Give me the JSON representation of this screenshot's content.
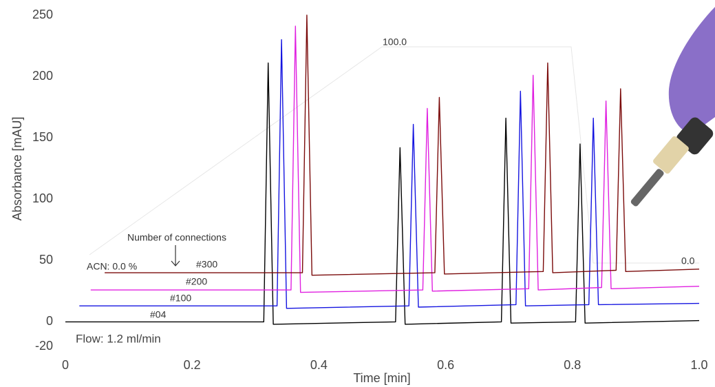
{
  "chart_data": {
    "type": "line",
    "x_label": "Time [min]",
    "y_label": "Absorbance [mAU]",
    "xlim": [
      0,
      1
    ],
    "ylim": [
      -20,
      250
    ],
    "xticks": [
      0,
      0.2,
      0.4,
      0.6,
      0.8,
      {
        "value": 1,
        "label": "1.0"
      }
    ],
    "yticks": [
      -20,
      0,
      50,
      100,
      150,
      200,
      250
    ],
    "annotations": [
      "Number of connections",
      "ACN: 0.0 %",
      "100.0",
      "0.0",
      "Flow: 1.2 ml/min"
    ],
    "series": [
      {
        "name": "#04",
        "color": "#000000",
        "label_color": "#000000",
        "x": [
          0,
          0.313,
          0.32,
          0.328,
          0.521,
          0.528,
          0.536,
          0.688,
          0.695,
          0.703,
          0.805,
          0.812,
          0.82,
          1.0
        ],
        "values": [
          0,
          0,
          211,
          -2,
          0,
          142,
          -2,
          0,
          166,
          -1,
          0,
          145,
          -1,
          1
        ]
      },
      {
        "name": "#100",
        "color": "#1414e0",
        "label_color": "#5a55c8",
        "x": [
          0.022,
          0.334,
          0.341,
          0.349,
          0.542,
          0.549,
          0.557,
          0.711,
          0.718,
          0.726,
          0.826,
          0.833,
          0.841,
          1.0
        ],
        "values": [
          13,
          13,
          230,
          11,
          13,
          161,
          12,
          14,
          188,
          13,
          14,
          166,
          14,
          15
        ]
      },
      {
        "name": "#200",
        "color": "#e020e0",
        "label_color": "#e86a6a",
        "x": [
          0.04,
          0.356,
          0.363,
          0.371,
          0.564,
          0.571,
          0.579,
          0.731,
          0.738,
          0.746,
          0.846,
          0.853,
          0.861,
          1.0
        ],
        "values": [
          26,
          26,
          241,
          24,
          26,
          174,
          25,
          27,
          201,
          26,
          28,
          180,
          27,
          29
        ]
      },
      {
        "name": "#300",
        "color": "#7a0a0a",
        "label_color": "#8a6a00",
        "x": [
          0.062,
          0.374,
          0.381,
          0.389,
          0.583,
          0.59,
          0.598,
          0.754,
          0.761,
          0.769,
          0.869,
          0.876,
          0.884,
          1.0
        ],
        "values": [
          40,
          40,
          250,
          38,
          40,
          183,
          39,
          41,
          211,
          40,
          42,
          190,
          41,
          43
        ]
      }
    ]
  }
}
